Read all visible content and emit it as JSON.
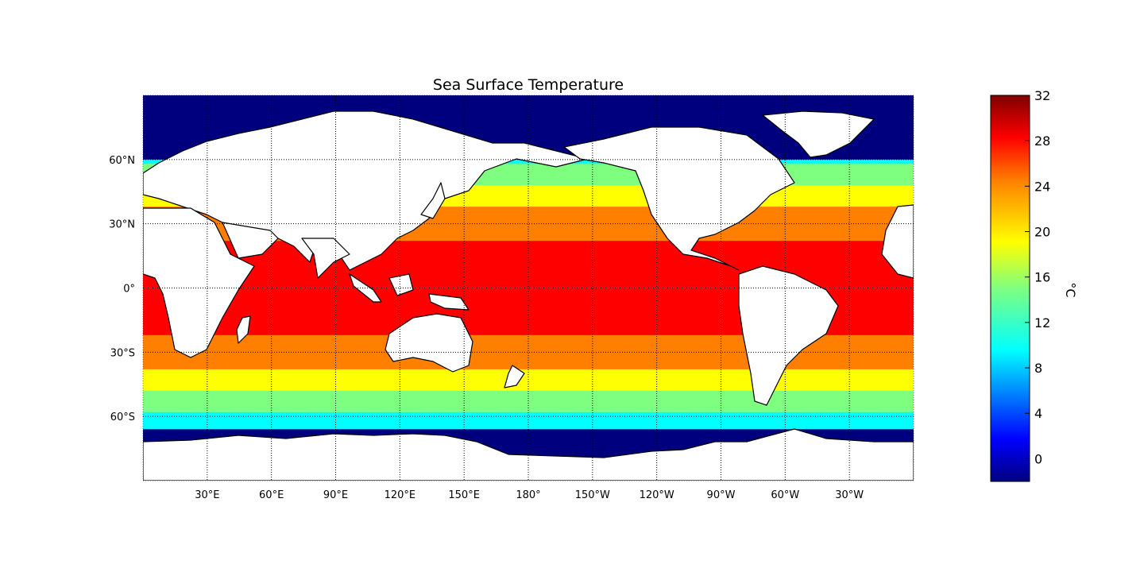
{
  "title": "Sea Surface Temperature",
  "map": {
    "projection": "equirectangular",
    "lon_range": [
      0,
      360
    ],
    "lat_range": [
      -90,
      90
    ],
    "grid_style": "dotted",
    "land_color": "#ffffff",
    "coastline_color": "#000000",
    "lat_labels": [
      {
        "lat": 60,
        "label": "60°N"
      },
      {
        "lat": 30,
        "label": "30°N"
      },
      {
        "lat": 0,
        "label": "0°"
      },
      {
        "lat": -30,
        "label": "30°S"
      },
      {
        "lat": -60,
        "label": "60°S"
      }
    ],
    "lon_labels": [
      {
        "lon": 30,
        "label": "30°E"
      },
      {
        "lon": 60,
        "label": "60°E"
      },
      {
        "lon": 90,
        "label": "90°E"
      },
      {
        "lon": 120,
        "label": "120°E"
      },
      {
        "lon": 150,
        "label": "150°E"
      },
      {
        "lon": 180,
        "label": "180°"
      },
      {
        "lon": 210,
        "label": "150°W"
      },
      {
        "lon": 240,
        "label": "120°W"
      },
      {
        "lon": 270,
        "label": "90°W"
      },
      {
        "lon": 300,
        "label": "60°W"
      },
      {
        "lon": 330,
        "label": "30°W"
      }
    ]
  },
  "colorbar": {
    "label": "°C",
    "colormap": "jet",
    "range": [
      -2,
      32
    ],
    "ticks": [
      {
        "value": 0,
        "label": "0"
      },
      {
        "value": 4,
        "label": "4"
      },
      {
        "value": 8,
        "label": "8"
      },
      {
        "value": 12,
        "label": "12"
      },
      {
        "value": 16,
        "label": "16"
      },
      {
        "value": 20,
        "label": "20"
      },
      {
        "value": 24,
        "label": "24"
      },
      {
        "value": 28,
        "label": "28"
      },
      {
        "value": 32,
        "label": "32"
      }
    ],
    "colors": [
      "#00007f",
      "#0000ff",
      "#007fff",
      "#00ffff",
      "#7fff7f",
      "#ffff00",
      "#ff7f00",
      "#ff0000",
      "#7f0000"
    ]
  }
}
